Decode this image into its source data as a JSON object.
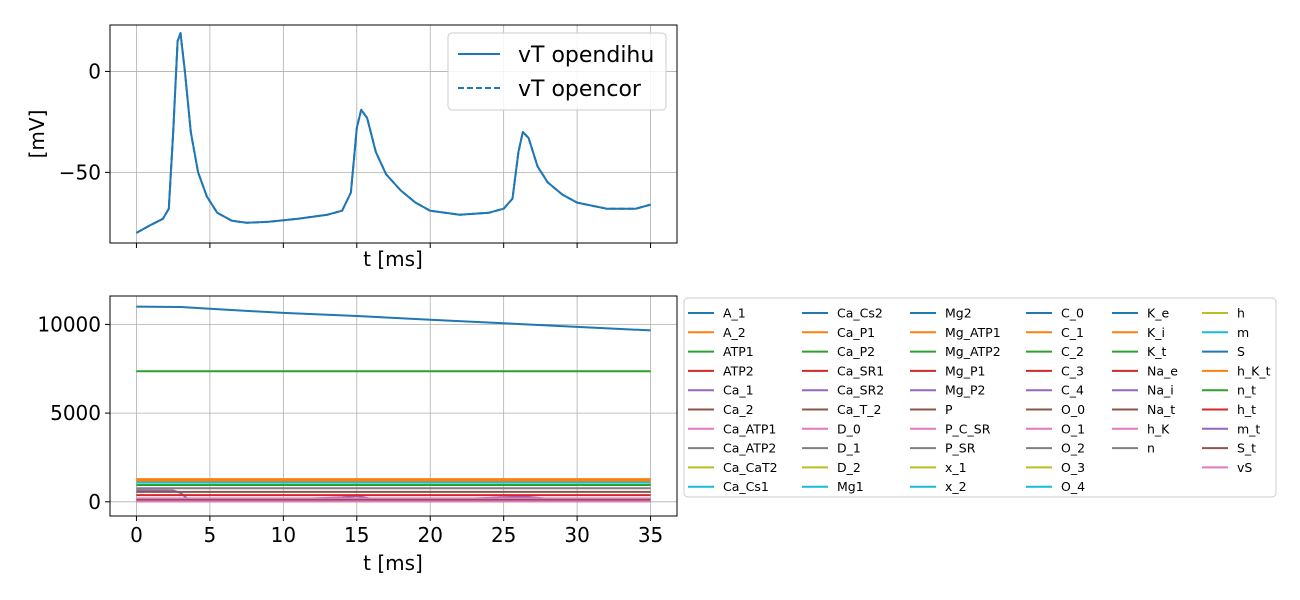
{
  "chart_data": [
    {
      "type": "line",
      "xlabel": "t [ms]",
      "ylabel": "[mV]",
      "xlim": [
        -1.8,
        36.8
      ],
      "ylim": [
        -85,
        23
      ],
      "xticks": [
        0,
        5,
        10,
        15,
        20,
        25,
        30,
        35
      ],
      "yticks": [
        0,
        -50
      ],
      "ytick_labels": [
        "0",
        "−50"
      ],
      "show_x_tick_labels": false,
      "grid": true,
      "legend": {
        "placement": "top-right"
      },
      "series": [
        {
          "name": "vT opendihu",
          "style": "solid",
          "color": "#1f77b4",
          "x": [
            0,
            1,
            1.8,
            2.2,
            2.5,
            2.8,
            3.0,
            3.3,
            3.7,
            4.2,
            4.8,
            5.5,
            6.5,
            7.5,
            9,
            11,
            13,
            14,
            14.6,
            15.0,
            15.3,
            15.7,
            16.3,
            17,
            18,
            19,
            20,
            22,
            24,
            25,
            25.6,
            26.0,
            26.3,
            26.7,
            27.3,
            28,
            29,
            30,
            32,
            34,
            35
          ],
          "y": [
            -80,
            -76,
            -73,
            -68,
            -30,
            15,
            19,
            0,
            -30,
            -50,
            -62,
            -70,
            -74,
            -75,
            -74.5,
            -73,
            -71,
            -69,
            -60,
            -28,
            -19,
            -23,
            -40,
            -51,
            -59,
            -65,
            -69,
            -71,
            -70,
            -68,
            -63,
            -40,
            -30,
            -33,
            -47,
            -55,
            -61,
            -65,
            -68,
            -68,
            -66
          ]
        },
        {
          "name": "vT opencor",
          "style": "dashed",
          "color": "#1f77b4",
          "x": [
            0,
            1,
            1.8,
            2.2,
            2.5,
            2.8,
            3.0,
            3.3,
            3.7,
            4.2,
            4.8,
            5.5,
            6.5,
            7.5,
            9,
            11,
            13,
            14,
            14.6,
            15.0,
            15.3,
            15.7,
            16.3,
            17,
            18,
            19,
            20,
            22,
            24,
            25,
            25.6,
            26.0,
            26.3,
            26.7,
            27.3,
            28,
            29,
            30,
            32,
            34,
            35
          ],
          "y": [
            -80,
            -76,
            -73,
            -68,
            -30,
            15,
            19,
            0,
            -30,
            -50,
            -62,
            -70,
            -74,
            -75,
            -74.5,
            -73,
            -71,
            -69,
            -60,
            -28,
            -19,
            -23,
            -40,
            -51,
            -59,
            -65,
            -69,
            -71,
            -70,
            -68,
            -63,
            -40,
            -30,
            -33,
            -47,
            -55,
            -61,
            -65,
            -68,
            -68,
            -66
          ]
        }
      ]
    },
    {
      "type": "line",
      "xlabel": "t [ms]",
      "ylabel": "",
      "xlim": [
        -1.8,
        36.8
      ],
      "ylim": [
        -800,
        11600
      ],
      "xticks": [
        0,
        5,
        10,
        15,
        20,
        25,
        30,
        35
      ],
      "yticks": [
        0,
        5000,
        10000
      ],
      "ytick_labels": [
        "0",
        "5000",
        "10000"
      ],
      "grid": true,
      "legend": {
        "placement": "outside-right",
        "columns": 6
      },
      "legend_entries": [
        "A_1",
        "A_2",
        "ATP1",
        "ATP2",
        "Ca_1",
        "Ca_2",
        "Ca_ATP1",
        "Ca_ATP2",
        "Ca_CaT2",
        "Ca_Cs1",
        "Ca_Cs2",
        "Ca_P1",
        "Ca_P2",
        "Ca_SR1",
        "Ca_SR2",
        "Ca_T_2",
        "D_0",
        "D_1",
        "D_2",
        "Mg1",
        "Mg2",
        "Mg_ATP1",
        "Mg_ATP2",
        "Mg_P1",
        "Mg_P2",
        "P",
        "P_C_SR",
        "P_SR",
        "x_1",
        "x_2",
        "C_0",
        "C_1",
        "C_2",
        "C_3",
        "C_4",
        "O_0",
        "O_1",
        "O_2",
        "O_3",
        "O_4",
        "K_e",
        "K_i",
        "K_t",
        "Na_e",
        "Na_i",
        "Na_t",
        "h_K",
        "n",
        "h",
        "m",
        "S",
        "h_K_t",
        "n_t",
        "h_t",
        "m_t",
        "S_t",
        "vS"
      ],
      "palette": [
        "#1f77b4",
        "#ff7f0e",
        "#2ca02c",
        "#d62728",
        "#9467bd",
        "#8c564b",
        "#e377c2",
        "#7f7f7f",
        "#bcbd22",
        "#17becf"
      ],
      "series": [
        {
          "name": "A_1",
          "x": [
            0,
            3,
            5,
            10,
            15,
            20,
            25,
            30,
            35
          ],
          "y": [
            11000,
            10980,
            10880,
            10650,
            10470,
            10260,
            10060,
            9860,
            9660
          ],
          "color": "#1f77b4"
        },
        {
          "name": "ATP1",
          "x": [
            0,
            35
          ],
          "y": [
            7360,
            7360
          ],
          "color": "#2ca02c"
        },
        {
          "name": "A_2",
          "x": [
            0,
            35
          ],
          "y": [
            1280,
            1280
          ],
          "color": "#ff7f0e"
        },
        {
          "name": "Ca_P1",
          "x": [
            0,
            35
          ],
          "y": [
            1170,
            1170
          ],
          "color": "#ff7f0e"
        },
        {
          "name": "Ca_Cs1",
          "x": [
            0,
            35
          ],
          "y": [
            1080,
            1080
          ],
          "color": "#17becf"
        },
        {
          "name": "ATP2",
          "x": [
            0,
            35
          ],
          "y": [
            950,
            950
          ],
          "color": "#2ca02c"
        },
        {
          "name": "Ca_ATP2",
          "x": [
            0,
            35
          ],
          "y": [
            760,
            760
          ],
          "color": "#7f7f7f"
        },
        {
          "name": "Ca_1",
          "x": [
            0,
            2.5,
            3.0,
            3.5,
            10,
            14,
            15,
            16,
            22,
            25,
            26.5,
            28,
            35
          ],
          "y": [
            660,
            640,
            500,
            150,
            130,
            250,
            330,
            170,
            150,
            260,
            280,
            170,
            150
          ],
          "color": "#9467bd"
        },
        {
          "name": "Ca_2",
          "x": [
            0,
            35
          ],
          "y": [
            560,
            560
          ],
          "color": "#8c564b"
        },
        {
          "name": "Ca_SR1",
          "x": [
            0,
            35
          ],
          "y": [
            380,
            380
          ],
          "color": "#d62728"
        },
        {
          "name": "Ca_ATP1",
          "x": [
            0,
            35
          ],
          "y": [
            190,
            190
          ],
          "color": "#e377c2"
        },
        {
          "name": "D_0",
          "x": [
            0,
            35
          ],
          "y": [
            100,
            100
          ],
          "color": "#8c564b"
        },
        {
          "name": "vS",
          "x": [
            0,
            35
          ],
          "y": [
            20,
            20
          ],
          "color": "#e377c2"
        }
      ]
    }
  ]
}
